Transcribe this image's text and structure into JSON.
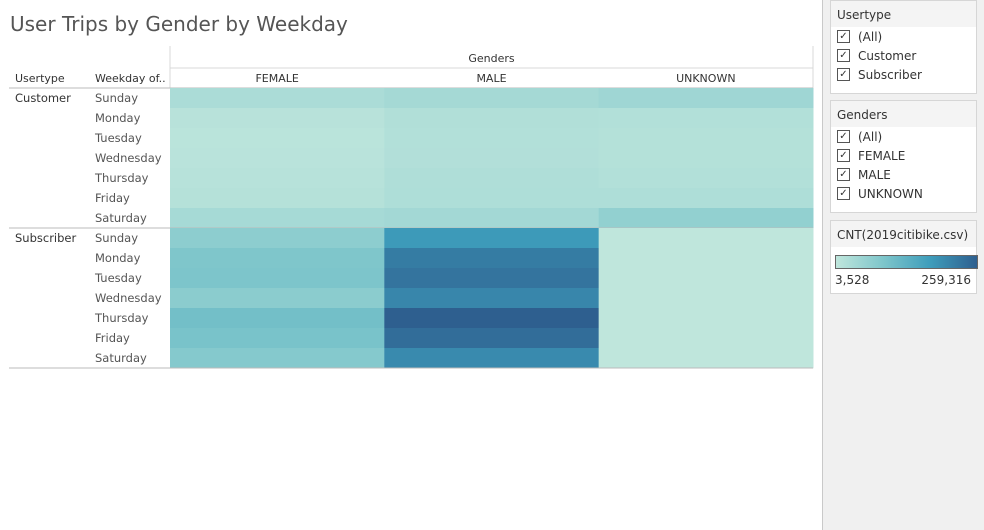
{
  "title": "User Trips by Gender by Weekday",
  "chart_data": {
    "type": "heatmap",
    "title": "User Trips by Gender by Weekday",
    "column_header_title": "Genders",
    "row_header_titles": [
      "Usertype",
      "Weekday of.."
    ],
    "columns": [
      "FEMALE",
      "MALE",
      "UNKNOWN"
    ],
    "row_groups": [
      {
        "name": "Customer",
        "rows": [
          "Sunday",
          "Monday",
          "Tuesday",
          "Wednesday",
          "Thursday",
          "Friday",
          "Saturday"
        ],
        "values": [
          [
            30000,
            37000,
            45000
          ],
          [
            13000,
            22000,
            20000
          ],
          [
            10000,
            20000,
            18000
          ],
          [
            11000,
            21000,
            18000
          ],
          [
            14000,
            24000,
            20000
          ],
          [
            17000,
            26000,
            26000
          ],
          [
            36000,
            40000,
            63000
          ]
        ]
      },
      {
        "name": "Subscriber",
        "rows": [
          "Sunday",
          "Monday",
          "Tuesday",
          "Wednesday",
          "Thursday",
          "Friday",
          "Saturday"
        ],
        "values": [
          [
            69000,
            178000,
            3528
          ],
          [
            88000,
            220000,
            3600
          ],
          [
            90000,
            230000,
            3600
          ],
          [
            72000,
            205000,
            3600
          ],
          [
            103000,
            259316,
            3600
          ],
          [
            95000,
            240000,
            3600
          ],
          [
            80000,
            200000,
            3600
          ]
        ]
      }
    ],
    "color_range": [
      3528,
      259316
    ],
    "color_scale": [
      "#bfe6dc",
      "#7ec6cb",
      "#3e9dbb",
      "#2e5f8f"
    ]
  },
  "filters": {
    "usertype": {
      "title": "Usertype",
      "items": [
        {
          "label": "(All)",
          "checked": true
        },
        {
          "label": "Customer",
          "checked": true
        },
        {
          "label": "Subscriber",
          "checked": true
        }
      ]
    },
    "genders": {
      "title": "Genders",
      "items": [
        {
          "label": "(All)",
          "checked": true
        },
        {
          "label": "FEMALE",
          "checked": true
        },
        {
          "label": "MALE",
          "checked": true
        },
        {
          "label": "UNKNOWN",
          "checked": true
        }
      ]
    }
  },
  "legend": {
    "title": "CNT(2019citibike.csv)",
    "min_label": "3,528",
    "max_label": "259,316"
  },
  "icons": {
    "check": "check-icon"
  }
}
